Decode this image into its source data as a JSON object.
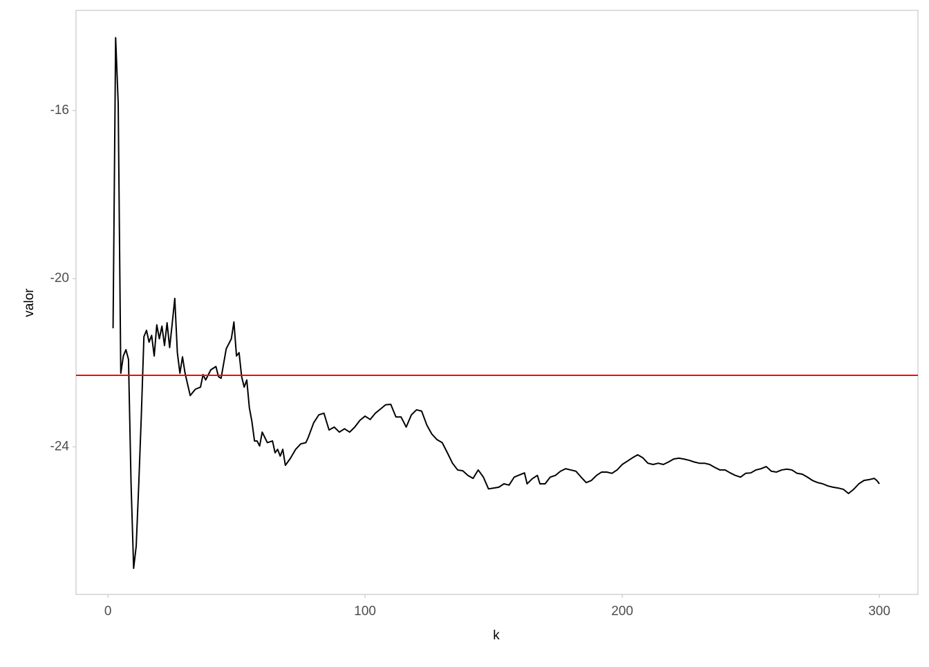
{
  "chart_data": {
    "type": "line",
    "xlabel": "k",
    "ylabel": "valor",
    "x": [
      2,
      3,
      4,
      5,
      6,
      7,
      8,
      9,
      10,
      11,
      12,
      13,
      14,
      15,
      16,
      17,
      18,
      19,
      20,
      21,
      22,
      23,
      24,
      25,
      26,
      27,
      28,
      29,
      30,
      32,
      34,
      36,
      37,
      38,
      40,
      42,
      43,
      44,
      46,
      48,
      49,
      50,
      51,
      52,
      53,
      54,
      55,
      56,
      57,
      58,
      59,
      60,
      62,
      64,
      65,
      66,
      67,
      68,
      69,
      71,
      73,
      75,
      77,
      78,
      80,
      82,
      84,
      86,
      88,
      90,
      92,
      94,
      96,
      98,
      100,
      102,
      104,
      106,
      108,
      110,
      112,
      114,
      116,
      118,
      120,
      122,
      124,
      126,
      128,
      130,
      132,
      134,
      136,
      138,
      140,
      142,
      144,
      146,
      148,
      150,
      152,
      154,
      156,
      158,
      160,
      162,
      163,
      165,
      167,
      168,
      170,
      172,
      174,
      176,
      178,
      180,
      182,
      184,
      186,
      188,
      190,
      192,
      194,
      196,
      198,
      200,
      202,
      204,
      206,
      208,
      210,
      212,
      214,
      216,
      218,
      220,
      222,
      224,
      226,
      228,
      230,
      232,
      234,
      236,
      238,
      240,
      242,
      244,
      246,
      248,
      250,
      252,
      254,
      256,
      258,
      260,
      262,
      264,
      266,
      268,
      270,
      272,
      274,
      276,
      278,
      280,
      282,
      284,
      286,
      288,
      290,
      292,
      294,
      296,
      298,
      299,
      300
    ],
    "values": [
      -21.18,
      -14.27,
      -15.84,
      -22.25,
      -21.84,
      -21.69,
      -21.92,
      -24.88,
      -26.89,
      -26.36,
      -24.88,
      -23.24,
      -21.38,
      -21.23,
      -21.51,
      -21.35,
      -21.84,
      -21.1,
      -21.43,
      -21.13,
      -21.59,
      -21.05,
      -21.64,
      -21.07,
      -20.47,
      -21.76,
      -22.25,
      -21.86,
      -22.25,
      -22.78,
      -22.63,
      -22.58,
      -22.28,
      -22.41,
      -22.17,
      -22.09,
      -22.33,
      -22.37,
      -21.67,
      -21.43,
      -21.03,
      -21.84,
      -21.76,
      -22.33,
      -22.58,
      -22.41,
      -23.07,
      -23.4,
      -23.86,
      -23.86,
      -23.98,
      -23.65,
      -23.9,
      -23.86,
      -24.14,
      -24.06,
      -24.22,
      -24.06,
      -24.44,
      -24.27,
      -24.06,
      -23.93,
      -23.9,
      -23.76,
      -23.43,
      -23.24,
      -23.2,
      -23.6,
      -23.53,
      -23.65,
      -23.57,
      -23.65,
      -23.53,
      -23.37,
      -23.27,
      -23.35,
      -23.2,
      -23.1,
      -23.0,
      -22.99,
      -23.29,
      -23.29,
      -23.53,
      -23.24,
      -23.12,
      -23.15,
      -23.48,
      -23.7,
      -23.83,
      -23.9,
      -24.14,
      -24.39,
      -24.55,
      -24.57,
      -24.68,
      -24.75,
      -24.55,
      -24.72,
      -25.0,
      -24.98,
      -24.96,
      -24.88,
      -24.91,
      -24.72,
      -24.67,
      -24.62,
      -24.88,
      -24.76,
      -24.68,
      -24.88,
      -24.88,
      -24.72,
      -24.68,
      -24.58,
      -24.52,
      -24.55,
      -24.58,
      -24.72,
      -24.85,
      -24.8,
      -24.68,
      -24.6,
      -24.6,
      -24.63,
      -24.55,
      -24.42,
      -24.34,
      -24.26,
      -24.19,
      -24.26,
      -24.39,
      -24.42,
      -24.39,
      -24.42,
      -24.36,
      -24.29,
      -24.27,
      -24.29,
      -24.32,
      -24.36,
      -24.39,
      -24.39,
      -24.42,
      -24.49,
      -24.55,
      -24.55,
      -24.62,
      -24.68,
      -24.72,
      -24.63,
      -24.62,
      -24.55,
      -24.52,
      -24.47,
      -24.58,
      -24.6,
      -24.55,
      -24.53,
      -24.55,
      -24.63,
      -24.65,
      -24.72,
      -24.8,
      -24.85,
      -24.88,
      -24.93,
      -24.96,
      -24.98,
      -25.01,
      -25.11,
      -25.01,
      -24.88,
      -24.8,
      -24.78,
      -24.75,
      -24.8,
      -24.88
    ],
    "color": "#000000",
    "hline": {
      "value": -22.3,
      "color": "#ff0000"
    },
    "xlim": [
      -12.4,
      315
    ],
    "ylim": [
      -27.51,
      -13.62
    ],
    "xticks": [
      0,
      100,
      200,
      300
    ],
    "yticks": [
      -16,
      -20,
      -24
    ]
  }
}
